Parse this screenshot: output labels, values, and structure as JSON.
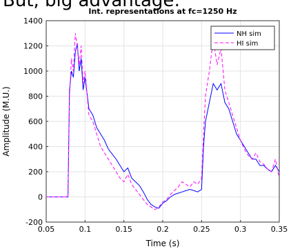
{
  "header": {
    "text": "But, big advantage:"
  },
  "chart_data": {
    "type": "line",
    "title": "Int. representations at fc=1250 Hz",
    "xlabel": "Time (s)",
    "ylabel": "Amplitude (M.U.)",
    "x": [
      0.05,
      0.06,
      0.07,
      0.078,
      0.08,
      0.0825,
      0.085,
      0.0875,
      0.09,
      0.0925,
      0.095,
      0.0975,
      0.1,
      0.105,
      0.11,
      0.115,
      0.12,
      0.125,
      0.13,
      0.135,
      0.14,
      0.145,
      0.15,
      0.155,
      0.16,
      0.165,
      0.17,
      0.175,
      0.18,
      0.185,
      0.19,
      0.195,
      0.2,
      0.205,
      0.21,
      0.215,
      0.22,
      0.225,
      0.23,
      0.235,
      0.24,
      0.245,
      0.25,
      0.2525,
      0.255,
      0.26,
      0.265,
      0.27,
      0.275,
      0.28,
      0.285,
      0.29,
      0.295,
      0.3,
      0.305,
      0.31,
      0.315,
      0.32,
      0.325,
      0.33,
      0.335,
      0.34,
      0.345,
      0.35
    ],
    "series": [
      {
        "name": "NH sim",
        "color": "#0000ff",
        "linestyle": "solid",
        "values": [
          0,
          0,
          0,
          0,
          850,
          1000,
          950,
          1150,
          1220,
          1000,
          1100,
          850,
          950,
          700,
          650,
          550,
          500,
          450,
          380,
          340,
          300,
          250,
          200,
          230,
          150,
          120,
          90,
          40,
          -20,
          -60,
          -80,
          -90,
          -50,
          -30,
          0,
          20,
          30,
          40,
          50,
          60,
          50,
          40,
          60,
          400,
          600,
          750,
          900,
          850,
          900,
          750,
          700,
          600,
          500,
          450,
          400,
          350,
          300,
          300,
          250,
          250,
          220,
          200,
          250,
          200
        ]
      },
      {
        "name": "HI sim",
        "color": "#ff00ff",
        "linestyle": "dashed",
        "values": [
          0,
          0,
          0,
          0,
          800,
          1100,
          1000,
          1300,
          1200,
          1050,
          1200,
          900,
          1000,
          650,
          600,
          500,
          400,
          350,
          300,
          250,
          200,
          150,
          120,
          180,
          100,
          60,
          20,
          -20,
          -60,
          -80,
          -100,
          -80,
          -40,
          -20,
          20,
          50,
          80,
          120,
          100,
          80,
          120,
          100,
          150,
          500,
          800,
          1000,
          1250,
          1050,
          1180,
          850,
          750,
          650,
          550,
          450,
          380,
          330,
          300,
          350,
          280,
          260,
          220,
          200,
          300,
          150
        ]
      }
    ],
    "xlim": [
      0.05,
      0.35
    ],
    "xticks": [
      0.05,
      0.1,
      0.15,
      0.2,
      0.25,
      0.3,
      0.35
    ],
    "ylim": [
      -200,
      1400
    ],
    "yticks": [
      -200,
      0,
      200,
      400,
      600,
      800,
      1000,
      1200,
      1400
    ],
    "grid": true,
    "legend": "upper right"
  }
}
